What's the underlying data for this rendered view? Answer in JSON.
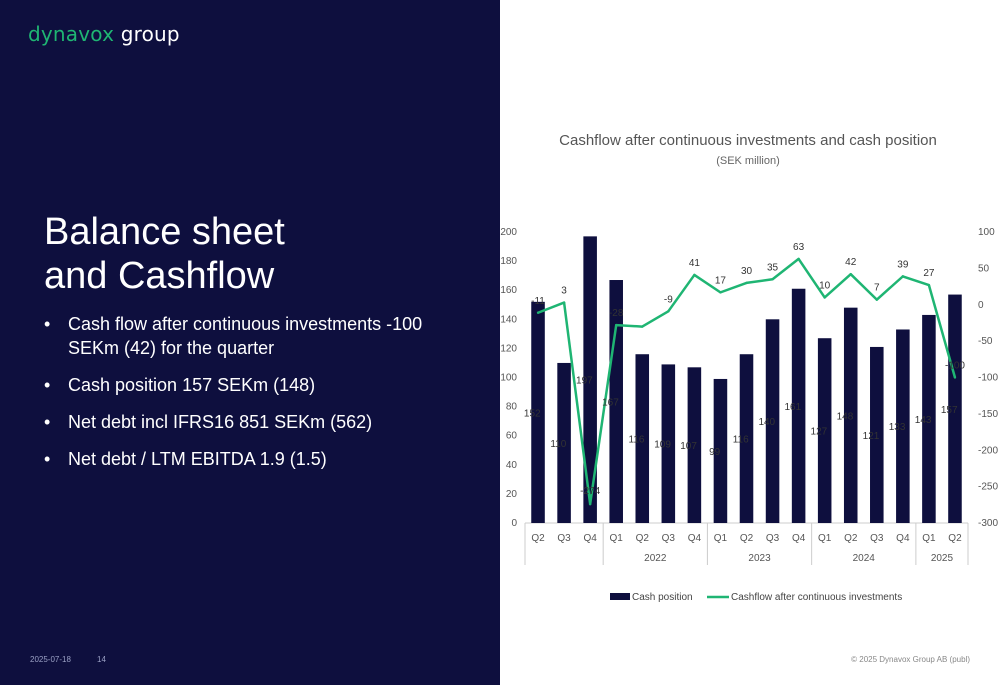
{
  "logo": {
    "brand": "dynavox",
    "suffix": " group"
  },
  "slide": {
    "title_line1": "Balance sheet",
    "title_line2": "and Cashflow",
    "bullets": [
      "Cash flow after continuous investments -100 SEKm (42) for the quarter",
      "Cash position 157 SEKm (148)",
      "Net debt incl IFRS16 851 SEKm (562)",
      "Net debt / LTM EBITDA 1.9 (1.5)"
    ]
  },
  "footer": {
    "date": "2025-07-18",
    "page": "14",
    "copyright": "© 2025 Dynavox Group AB (publ)"
  },
  "colors": {
    "background_left": "#0e0f3e",
    "brand_green": "#1fb573",
    "bar": "#0e0f3e",
    "line": "#1fb573"
  },
  "chart_data": {
    "type": "bar",
    "title": "Cashflow after continuous investments and cash position",
    "subtitle": "(SEK million)",
    "categories": [
      "Q2",
      "Q3",
      "Q4",
      "Q1",
      "Q2",
      "Q3",
      "Q4",
      "Q1",
      "Q2",
      "Q3",
      "Q4",
      "Q1",
      "Q2",
      "Q3",
      "Q4",
      "Q1",
      "Q2"
    ],
    "groups": [
      {
        "label": "",
        "start": 0,
        "end": 2
      },
      {
        "label": "2022",
        "start": 3,
        "end": 6
      },
      {
        "label": "2023",
        "start": 7,
        "end": 10
      },
      {
        "label": "2024",
        "start": 11,
        "end": 14
      },
      {
        "label": "2025",
        "start": 15,
        "end": 16
      }
    ],
    "series": [
      {
        "name": "Cash position",
        "type": "bar",
        "axis": "left",
        "values": [
          152,
          110,
          197,
          167,
          116,
          109,
          107,
          99,
          116,
          140,
          161,
          127,
          148,
          121,
          133,
          143,
          157
        ]
      },
      {
        "name": "Cashflow after continuous investments",
        "type": "line",
        "axis": "right",
        "values": [
          -11,
          3,
          -274,
          -28,
          -30,
          -9,
          41,
          17,
          30,
          35,
          63,
          10,
          42,
          7,
          39,
          27,
          -100
        ],
        "labels": [
          "-11",
          "3",
          "-274",
          "-28",
          "",
          "-9",
          "41",
          "17",
          "30",
          "35",
          "63",
          "10",
          "42",
          "7",
          "39",
          "27",
          "-100"
        ]
      }
    ],
    "y_left": {
      "min": 0,
      "max": 200,
      "step": 20
    },
    "y_right": {
      "min": -300,
      "max": 100,
      "step": 50
    },
    "legend": "bottom",
    "grid": false
  }
}
